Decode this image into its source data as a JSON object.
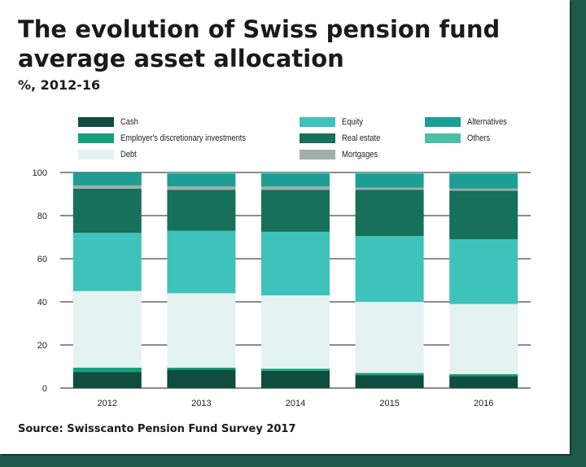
{
  "header": {
    "title": "The evolution of Swiss pension fund average asset allocation",
    "subtitle": "%, 2012-16"
  },
  "footer": {
    "source": "Source: Swisscanto Pension Fund Survey 2017"
  },
  "chart_data": {
    "type": "bar",
    "stacked": true,
    "categories": [
      "2012",
      "2013",
      "2014",
      "2015",
      "2016"
    ],
    "ylim": [
      0,
      100
    ],
    "yticks": [
      0,
      20,
      40,
      60,
      80,
      100
    ],
    "grid": true,
    "legend_placement": "top",
    "series": [
      {
        "name": "Cash",
        "color": "#0f4d3e",
        "values": [
          7.5,
          8.5,
          8,
          6,
          5.5
        ]
      },
      {
        "name": "Employer's discretionary investments",
        "color": "#14a07c",
        "values": [
          2,
          1,
          1,
          1,
          1
        ]
      },
      {
        "name": "Debt",
        "color": "#e4f2f0",
        "values": [
          35.5,
          34.5,
          34,
          33,
          32.5
        ]
      },
      {
        "name": "Equity",
        "color": "#3ec2bc",
        "values": [
          27,
          29,
          29.5,
          30.5,
          30
        ]
      },
      {
        "name": "Real estate",
        "color": "#16705a",
        "values": [
          20.5,
          19,
          19.5,
          21.5,
          22.5
        ]
      },
      {
        "name": "Mortgages",
        "color": "#a2aeaa",
        "values": [
          1.5,
          1.5,
          1.5,
          1,
          1
        ]
      },
      {
        "name": "Alternatives",
        "color": "#1d9e94",
        "values": [
          6,
          6,
          6,
          6.5,
          7
        ]
      },
      {
        "name": "Others",
        "color": "#4dbfa7",
        "values": [
          0,
          0.5,
          0.5,
          0.5,
          0.5
        ]
      }
    ],
    "legend_order": [
      "Cash",
      "Employer's discretionary investments",
      "Debt",
      "Equity",
      "Real estate",
      "Mortgages",
      "Alternatives",
      "Others"
    ]
  }
}
